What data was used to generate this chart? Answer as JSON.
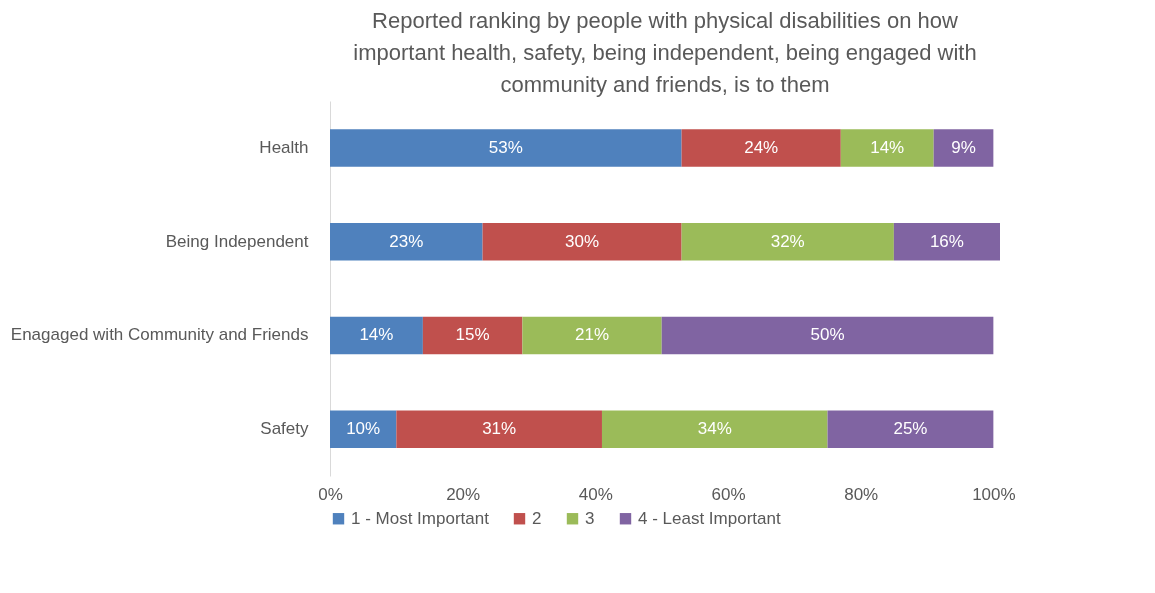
{
  "chart_data": {
    "type": "bar",
    "orientation": "horizontal",
    "stacked": true,
    "title": "Reported ranking by people with physical disabilities on how important  health, safety, being independent, being engaged with community  and friends, is to them",
    "categories": [
      "Health",
      "Being Independent",
      "Enagaged with Community and Friends",
      "Safety"
    ],
    "series": [
      {
        "name": "1 - Most Important",
        "color": "#4f81bd",
        "values": [
          53,
          23,
          14,
          10
        ]
      },
      {
        "name": "2",
        "color": "#c0504d",
        "values": [
          24,
          30,
          15,
          31
        ]
      },
      {
        "name": "3",
        "color": "#9bbb59",
        "values": [
          14,
          32,
          21,
          34
        ]
      },
      {
        "name": "4 -  Least Important",
        "color": "#8064a2",
        "values": [
          9,
          16,
          50,
          25
        ]
      }
    ],
    "xlim": [
      0,
      101
    ],
    "xticks": [
      {
        "value": 0,
        "label": "0%"
      },
      {
        "value": 20,
        "label": "20%"
      },
      {
        "value": 40,
        "label": "40%"
      },
      {
        "value": 60,
        "label": "60%"
      },
      {
        "value": 80,
        "label": "80%"
      },
      {
        "value": 100,
        "label": "100%"
      }
    ],
    "value_labels": [
      [
        "53%",
        "24%",
        "14%",
        "9%"
      ],
      [
        "23%",
        "30%",
        "32%",
        "16%"
      ],
      [
        "14%",
        "15%",
        "21%",
        "50%"
      ],
      [
        "10%",
        "31%",
        "34%",
        "25%"
      ]
    ],
    "legend": "bottom",
    "grid": false
  }
}
